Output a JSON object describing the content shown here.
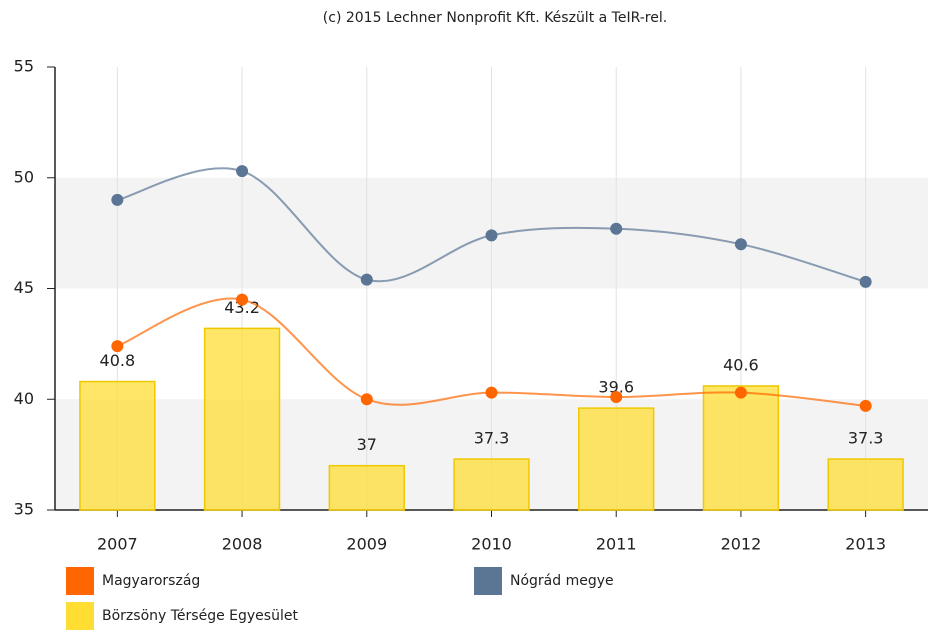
{
  "chart_data": {
    "type": "bar",
    "title": "(c) 2015 Lechner Nonprofit Kft. Készült a TeIR-rel.",
    "categories": [
      "2007",
      "2008",
      "2009",
      "2010",
      "2011",
      "2012",
      "2013"
    ],
    "ylim": [
      35,
      55
    ],
    "yticks": [
      35,
      40,
      45,
      50,
      55
    ],
    "grid": true,
    "legend": "bottom",
    "series": [
      {
        "name": "Magyarország",
        "type": "line",
        "color": "#ff6600",
        "values": [
          42.4,
          44.5,
          40.0,
          40.3,
          40.1,
          40.3,
          39.7
        ]
      },
      {
        "name": "Nógrád megye",
        "type": "line",
        "color": "#5b7595",
        "values": [
          49.0,
          50.3,
          45.4,
          47.4,
          47.7,
          47.0,
          45.3
        ]
      },
      {
        "name": "Börzsöny Térsége Egyesület",
        "type": "bar",
        "color": "#ffdd33",
        "values": [
          40.8,
          43.2,
          37,
          37.3,
          39.6,
          40.6,
          37.3
        ]
      }
    ]
  }
}
